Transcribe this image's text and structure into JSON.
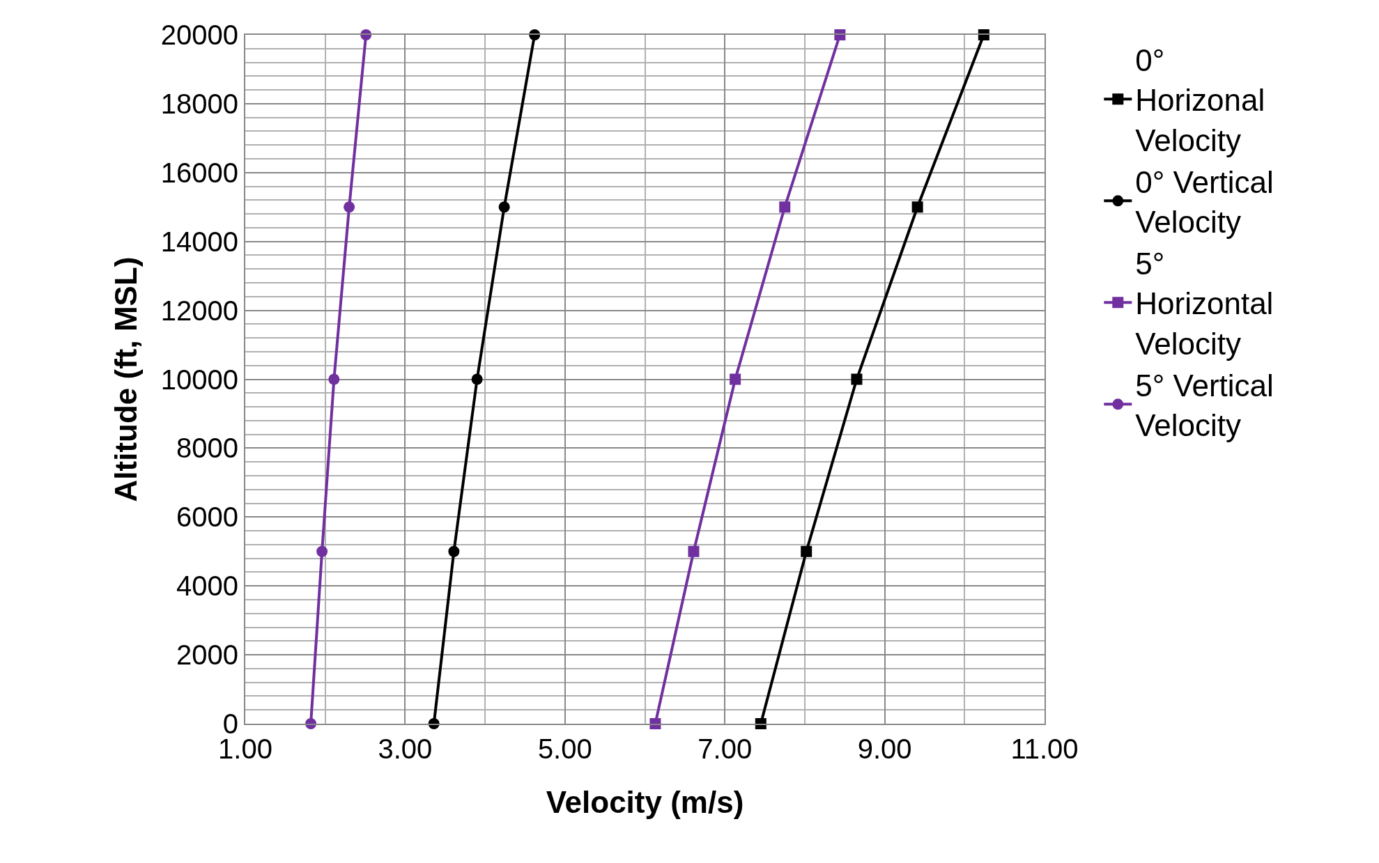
{
  "chart_data": {
    "type": "line",
    "xlabel": "Velocity (m/s)",
    "ylabel": "Altitude (ft, MSL)",
    "series": [
      {
        "name": "0° Horizonal Velocity",
        "color": "#000000",
        "marker": "square",
        "x": [
          7.45,
          8.02,
          8.65,
          9.41,
          10.24
        ],
        "values": [
          0,
          5000,
          10000,
          15000,
          20000
        ]
      },
      {
        "name": "0° Vertical Velocity",
        "color": "#000000",
        "marker": "circle",
        "x": [
          3.36,
          3.61,
          3.9,
          4.24,
          4.62
        ],
        "values": [
          0,
          5000,
          10000,
          15000,
          20000
        ]
      },
      {
        "name": "5° Horizontal Velocity",
        "color": "#7030a0",
        "marker": "square",
        "x": [
          6.13,
          6.61,
          7.13,
          7.75,
          8.44
        ],
        "values": [
          0,
          5000,
          10000,
          15000,
          20000
        ]
      },
      {
        "name": "5° Vertical Velocity",
        "color": "#7030a0",
        "marker": "circle",
        "x": [
          1.82,
          1.96,
          2.11,
          2.3,
          2.51
        ],
        "values": [
          0,
          5000,
          10000,
          15000,
          20000
        ]
      }
    ],
    "xlim": [
      1,
      11
    ],
    "xticks": [
      {
        "value": 1,
        "label": "1.00"
      },
      {
        "value": 3,
        "label": "3.00"
      },
      {
        "value": 5,
        "label": "5.00"
      },
      {
        "value": 7,
        "label": "7.00"
      },
      {
        "value": 9,
        "label": "9.00"
      },
      {
        "value": 11,
        "label": "11.00"
      }
    ],
    "ylim": [
      0,
      20000
    ],
    "yticks": [
      0,
      2000,
      4000,
      6000,
      8000,
      10000,
      12000,
      14000,
      16000,
      18000,
      20000
    ],
    "grid": true,
    "legend": "right"
  }
}
